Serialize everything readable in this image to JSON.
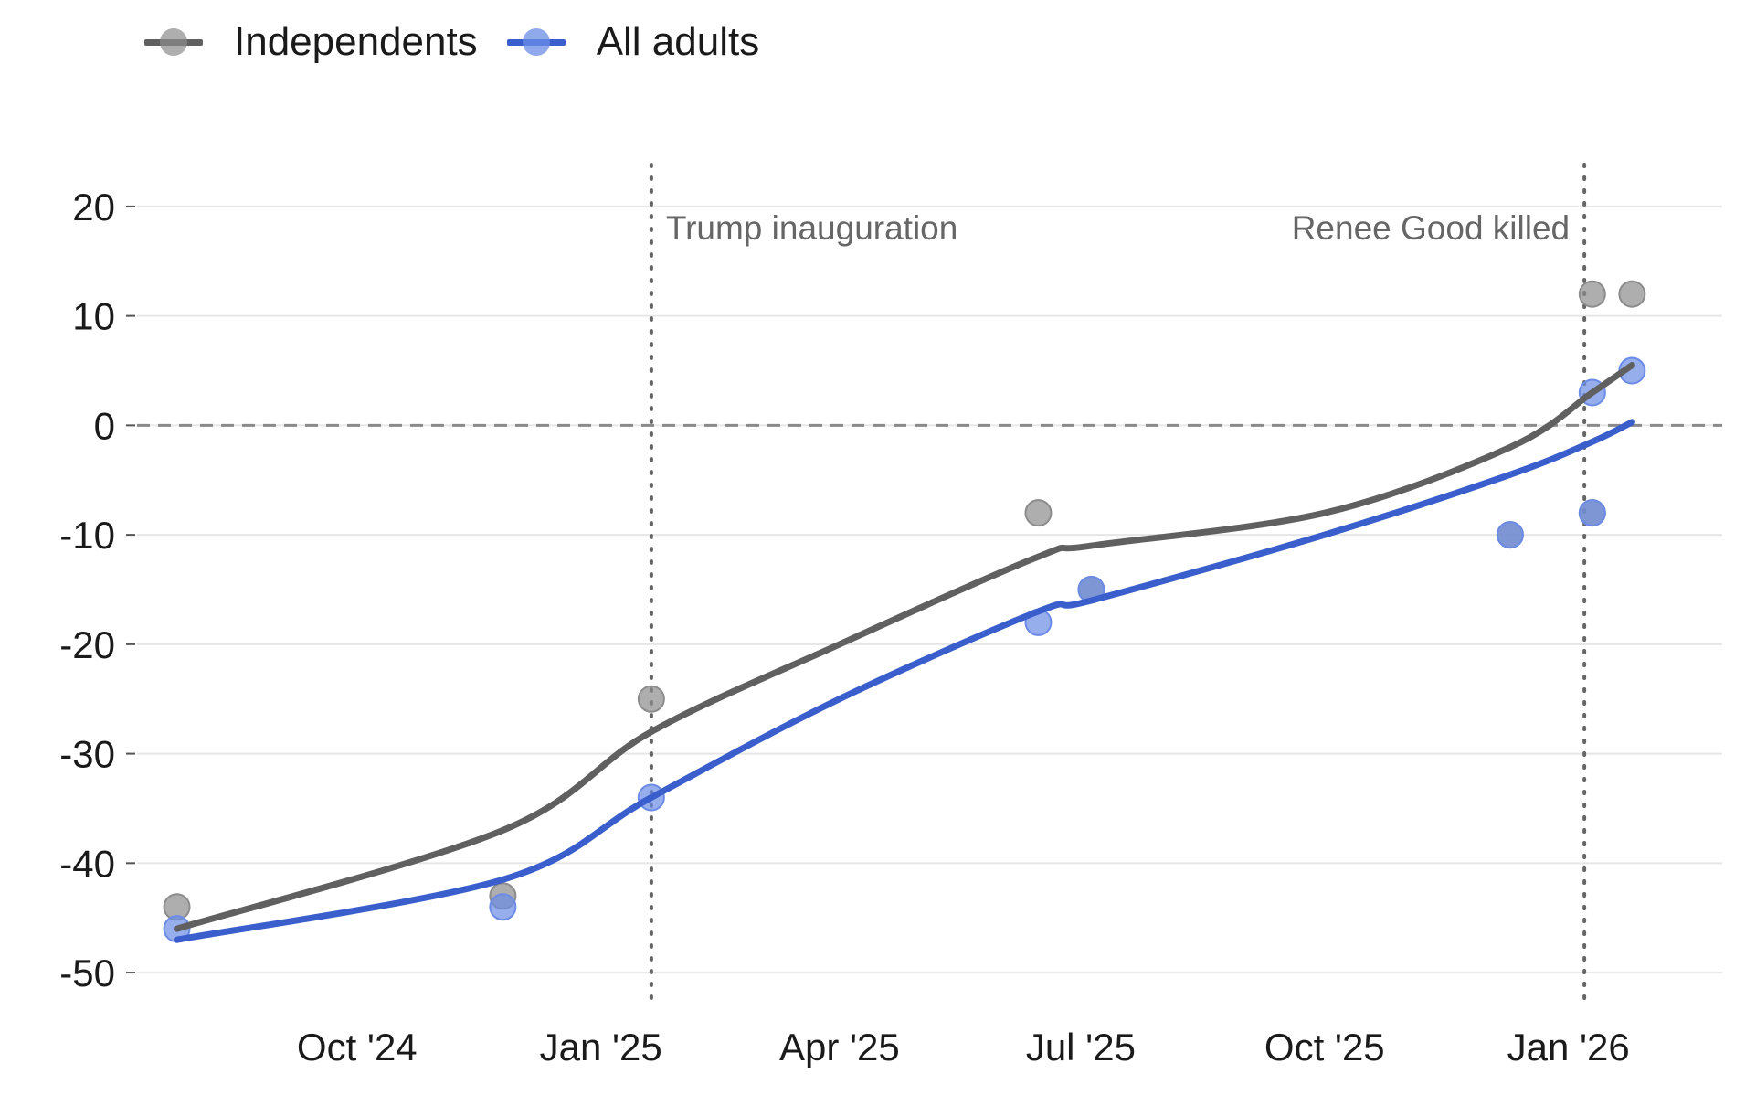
{
  "chart_data": {
    "type": "line",
    "title": "",
    "xlabel": "",
    "ylabel": "",
    "ylim": [
      -53,
      24
    ],
    "x_ticks": [
      "Oct '24",
      "Jan '25",
      "Apr '25",
      "Jul '25",
      "Oct '25",
      "Jan '26"
    ],
    "y_ticks": [
      20,
      10,
      0,
      -10,
      -20,
      -30,
      -40,
      -50
    ],
    "reference_line": {
      "y": 0,
      "style": "dashed"
    },
    "annotations": [
      {
        "label": "Trump inauguration",
        "date": "Jan 20 '25"
      },
      {
        "label": "Renee Good killed",
        "date": "Jan 7 '26"
      }
    ],
    "series": [
      {
        "name": "Independents",
        "color": "#606060",
        "point_color": "#8c8c8c",
        "points": [
          {
            "date": "Jul 25 '24",
            "value": -44
          },
          {
            "date": "Nov 25 '24",
            "value": -43
          },
          {
            "date": "Jan 20 '25",
            "value": -25
          },
          {
            "date": "Jun 15 '25",
            "value": -8
          },
          {
            "date": "Jul 5 '25",
            "value": -15
          },
          {
            "date": "Dec 10 '25",
            "value": -10
          },
          {
            "date": "Jan 10 '26",
            "value": -8
          },
          {
            "date": "Jan 10 '26",
            "value": 12
          },
          {
            "date": "Jan 25 '26",
            "value": 12
          }
        ],
        "trend": [
          {
            "date": "Jul 25 '24",
            "value": -46
          },
          {
            "date": "Nov 25 '24",
            "value": -37
          },
          {
            "date": "Jan 20 '25",
            "value": -28
          },
          {
            "date": "Apr 1 '25",
            "value": -20
          },
          {
            "date": "Jun 15 '25",
            "value": -12
          },
          {
            "date": "Jul 5 '25",
            "value": -11
          },
          {
            "date": "Oct 1 '25",
            "value": -8
          },
          {
            "date": "Dec 10 '25",
            "value": -2
          },
          {
            "date": "Jan 10 '26",
            "value": 3
          },
          {
            "date": "Jan 25 '26",
            "value": 5.5
          }
        ]
      },
      {
        "name": "All adults",
        "color": "#3a5fcd",
        "point_color": "#6b8be6",
        "points": [
          {
            "date": "Jul 25 '24",
            "value": -46
          },
          {
            "date": "Nov 25 '24",
            "value": -44
          },
          {
            "date": "Jan 20 '25",
            "value": -34
          },
          {
            "date": "Jun 15 '25",
            "value": -18
          },
          {
            "date": "Jul 5 '25",
            "value": -15
          },
          {
            "date": "Dec 10 '25",
            "value": -10
          },
          {
            "date": "Jan 10 '26",
            "value": -8
          },
          {
            "date": "Jan 10 '26",
            "value": 3
          },
          {
            "date": "Jan 25 '26",
            "value": 5
          }
        ],
        "trend": [
          {
            "date": "Jul 25 '24",
            "value": -47
          },
          {
            "date": "Nov 25 '24",
            "value": -41.5
          },
          {
            "date": "Jan 20 '25",
            "value": -34
          },
          {
            "date": "Apr 1 '25",
            "value": -25
          },
          {
            "date": "Jun 15 '25",
            "value": -17
          },
          {
            "date": "Jul 5 '25",
            "value": -16
          },
          {
            "date": "Oct 1 '25",
            "value": -10
          },
          {
            "date": "Dec 10 '25",
            "value": -4.5
          },
          {
            "date": "Jan 10 '26",
            "value": -1.5
          },
          {
            "date": "Jan 25 '26",
            "value": 0.3
          }
        ]
      }
    ]
  }
}
